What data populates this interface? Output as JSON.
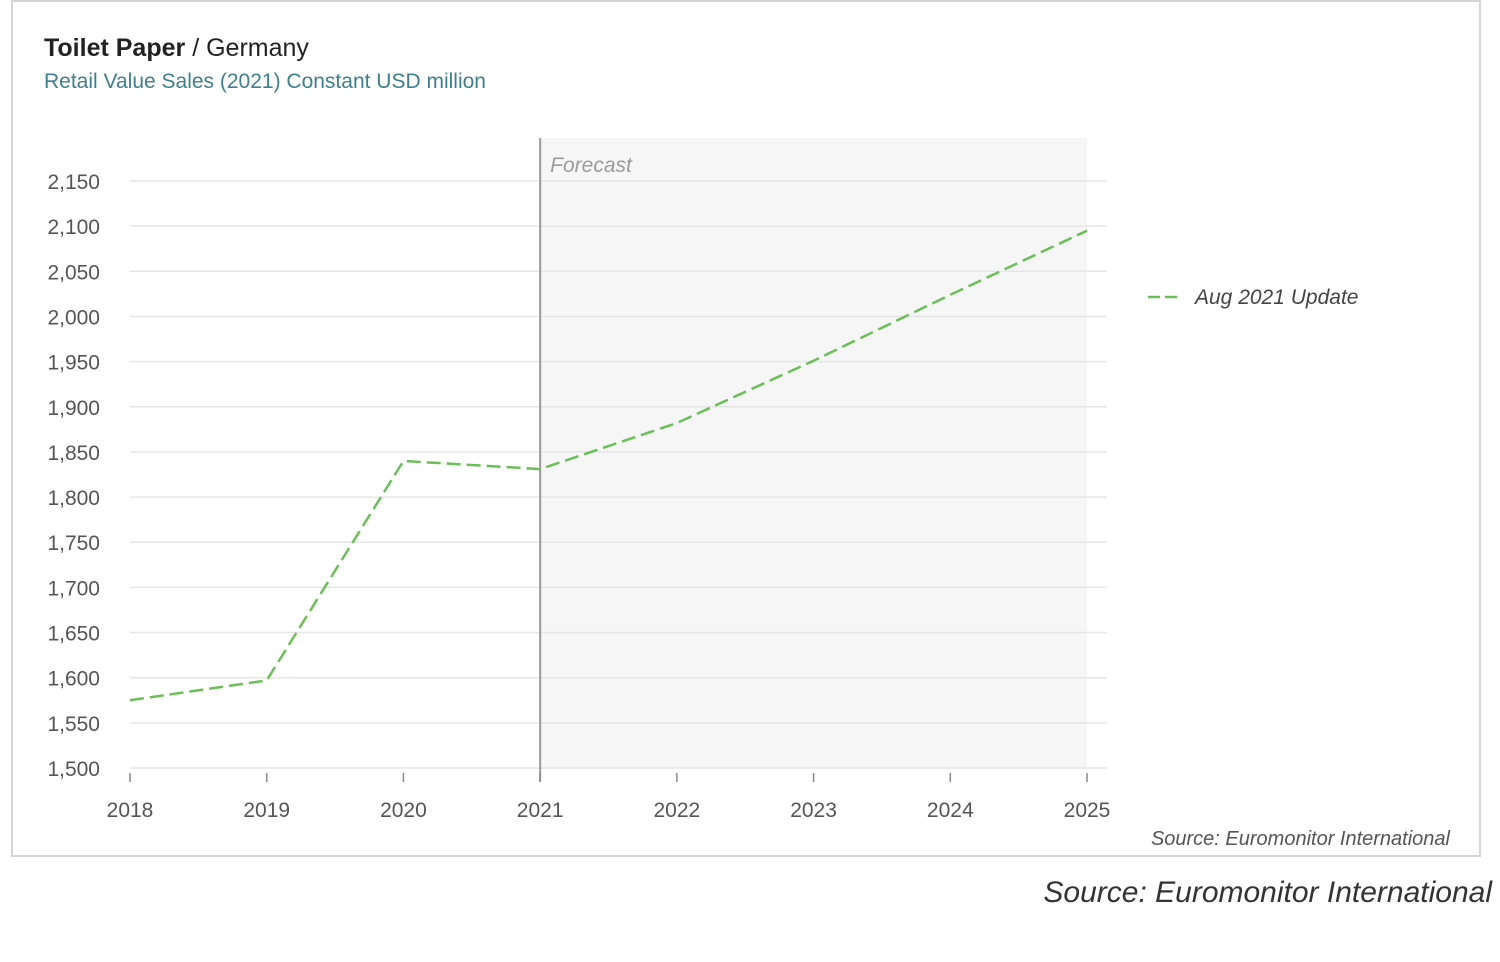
{
  "title_main": "Toilet Paper",
  "title_separator": " / ",
  "title_country": "Germany",
  "subtitle": "Retail Value Sales (2021) Constant USD million",
  "forecast_label": "Forecast",
  "card_source": "Source: Euromonitor International",
  "outside_source": "Source: Euromonitor International",
  "colors": {
    "series": "#6bbf59",
    "forecast_band": "#f6f6f6",
    "grid": "#e6e6e6",
    "divider": "#9a9a9a",
    "axis_text": "#555555"
  },
  "chart_data": {
    "type": "line",
    "x": [
      2018,
      2019,
      2020,
      2021,
      2022,
      2023,
      2024,
      2025
    ],
    "series": [
      {
        "name": "Aug 2021 Update",
        "values": [
          1575,
          1597,
          1840,
          1831,
          1882,
          1951,
          2024,
          2095
        ],
        "style": "dashed"
      }
    ],
    "ylim": [
      1500,
      2150
    ],
    "yticks": [
      1500,
      1550,
      1600,
      1650,
      1700,
      1750,
      1800,
      1850,
      1900,
      1950,
      2000,
      2050,
      2100,
      2150
    ],
    "forecast_start": 2021,
    "forecast_end": 2025,
    "grid": true,
    "legend_position": "right"
  }
}
